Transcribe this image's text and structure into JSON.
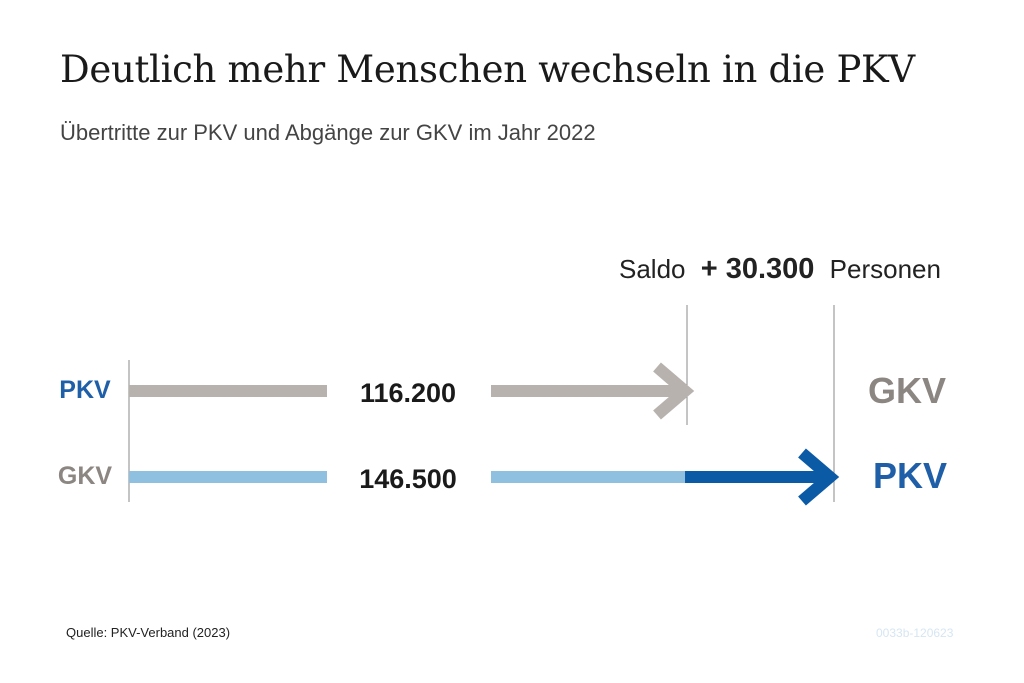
{
  "title": "Deutlich mehr Menschen wechseln in die PKV",
  "subtitle": "Übertritte zur PKV und Abgänge zur GKV im Jahr 2022",
  "source": "Quelle: PKV-Verband (2023)",
  "code": "0033b-120623",
  "colors": {
    "grey": "#b7b2ae",
    "grey_text": "#8c8682",
    "light_blue": "#8fc0e0",
    "dark_blue": "#0b5aa6",
    "blue_text": "#1f5fa8"
  },
  "chart_data": {
    "type": "bar",
    "series": [
      {
        "from": "PKV",
        "to": "GKV",
        "value": 116200,
        "label": "116.200"
      },
      {
        "from": "GKV",
        "to": "PKV",
        "value": 146500,
        "label": "146.500"
      }
    ],
    "balance": {
      "prefix": "Saldo",
      "value": 30300,
      "label": "+ 30.300",
      "unit": "Personen"
    }
  }
}
